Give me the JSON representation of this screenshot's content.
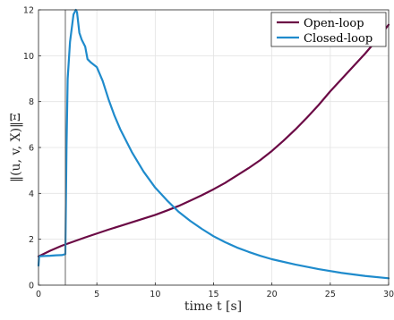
{
  "chart_data": {
    "type": "line",
    "title": "",
    "xlabel": "time t [s]",
    "ylabel": "‖(u, v, X)‖Ξ",
    "xlim": [
      0,
      30
    ],
    "ylim": [
      0,
      12
    ],
    "xticks": [
      0,
      5,
      10,
      15,
      20,
      25,
      30
    ],
    "yticks": [
      0,
      2,
      4,
      6,
      8,
      10,
      12
    ],
    "grid": true,
    "legend_position": "top-right",
    "vertical_marker_x": 2.3,
    "series": [
      {
        "name": "Open-loop",
        "color": "#6b0a45",
        "x": [
          0,
          1,
          2,
          3,
          4,
          5,
          6,
          7,
          8,
          9,
          10,
          11,
          12,
          13,
          14,
          15,
          16,
          17,
          18,
          19,
          20,
          21,
          22,
          23,
          24,
          25,
          26,
          27,
          28,
          29,
          30
        ],
        "y": [
          1.25,
          1.5,
          1.72,
          1.9,
          2.08,
          2.25,
          2.42,
          2.58,
          2.74,
          2.9,
          3.06,
          3.25,
          3.45,
          3.68,
          3.92,
          4.18,
          4.46,
          4.78,
          5.1,
          5.45,
          5.85,
          6.3,
          6.78,
          7.3,
          7.85,
          8.45,
          9.0,
          9.55,
          10.1,
          10.7,
          11.35
        ]
      },
      {
        "name": "Closed-loop",
        "color": "#1f8bcc",
        "x": [
          0,
          0.05,
          0.2,
          0.5,
          1.0,
          1.5,
          2.0,
          2.3,
          2.4,
          2.5,
          2.7,
          3.0,
          3.2,
          3.3,
          3.5,
          3.7,
          4.0,
          4.2,
          4.5,
          5.0,
          5.5,
          6.0,
          6.5,
          7.0,
          8.0,
          9.0,
          10.0,
          11.0,
          12.0,
          13.0,
          14.0,
          15.0,
          16.0,
          17.0,
          18.0,
          19.0,
          20.0,
          22.0,
          24.0,
          26.0,
          28.0,
          30.0
        ],
        "y": [
          0.85,
          1.25,
          1.26,
          1.27,
          1.28,
          1.3,
          1.31,
          1.35,
          6.0,
          9.0,
          10.6,
          11.8,
          12.0,
          11.9,
          11.0,
          10.7,
          10.4,
          9.85,
          9.7,
          9.5,
          8.9,
          8.1,
          7.4,
          6.8,
          5.8,
          4.95,
          4.25,
          3.7,
          3.2,
          2.8,
          2.45,
          2.13,
          1.87,
          1.64,
          1.45,
          1.28,
          1.13,
          0.9,
          0.7,
          0.53,
          0.4,
          0.3
        ]
      }
    ]
  }
}
